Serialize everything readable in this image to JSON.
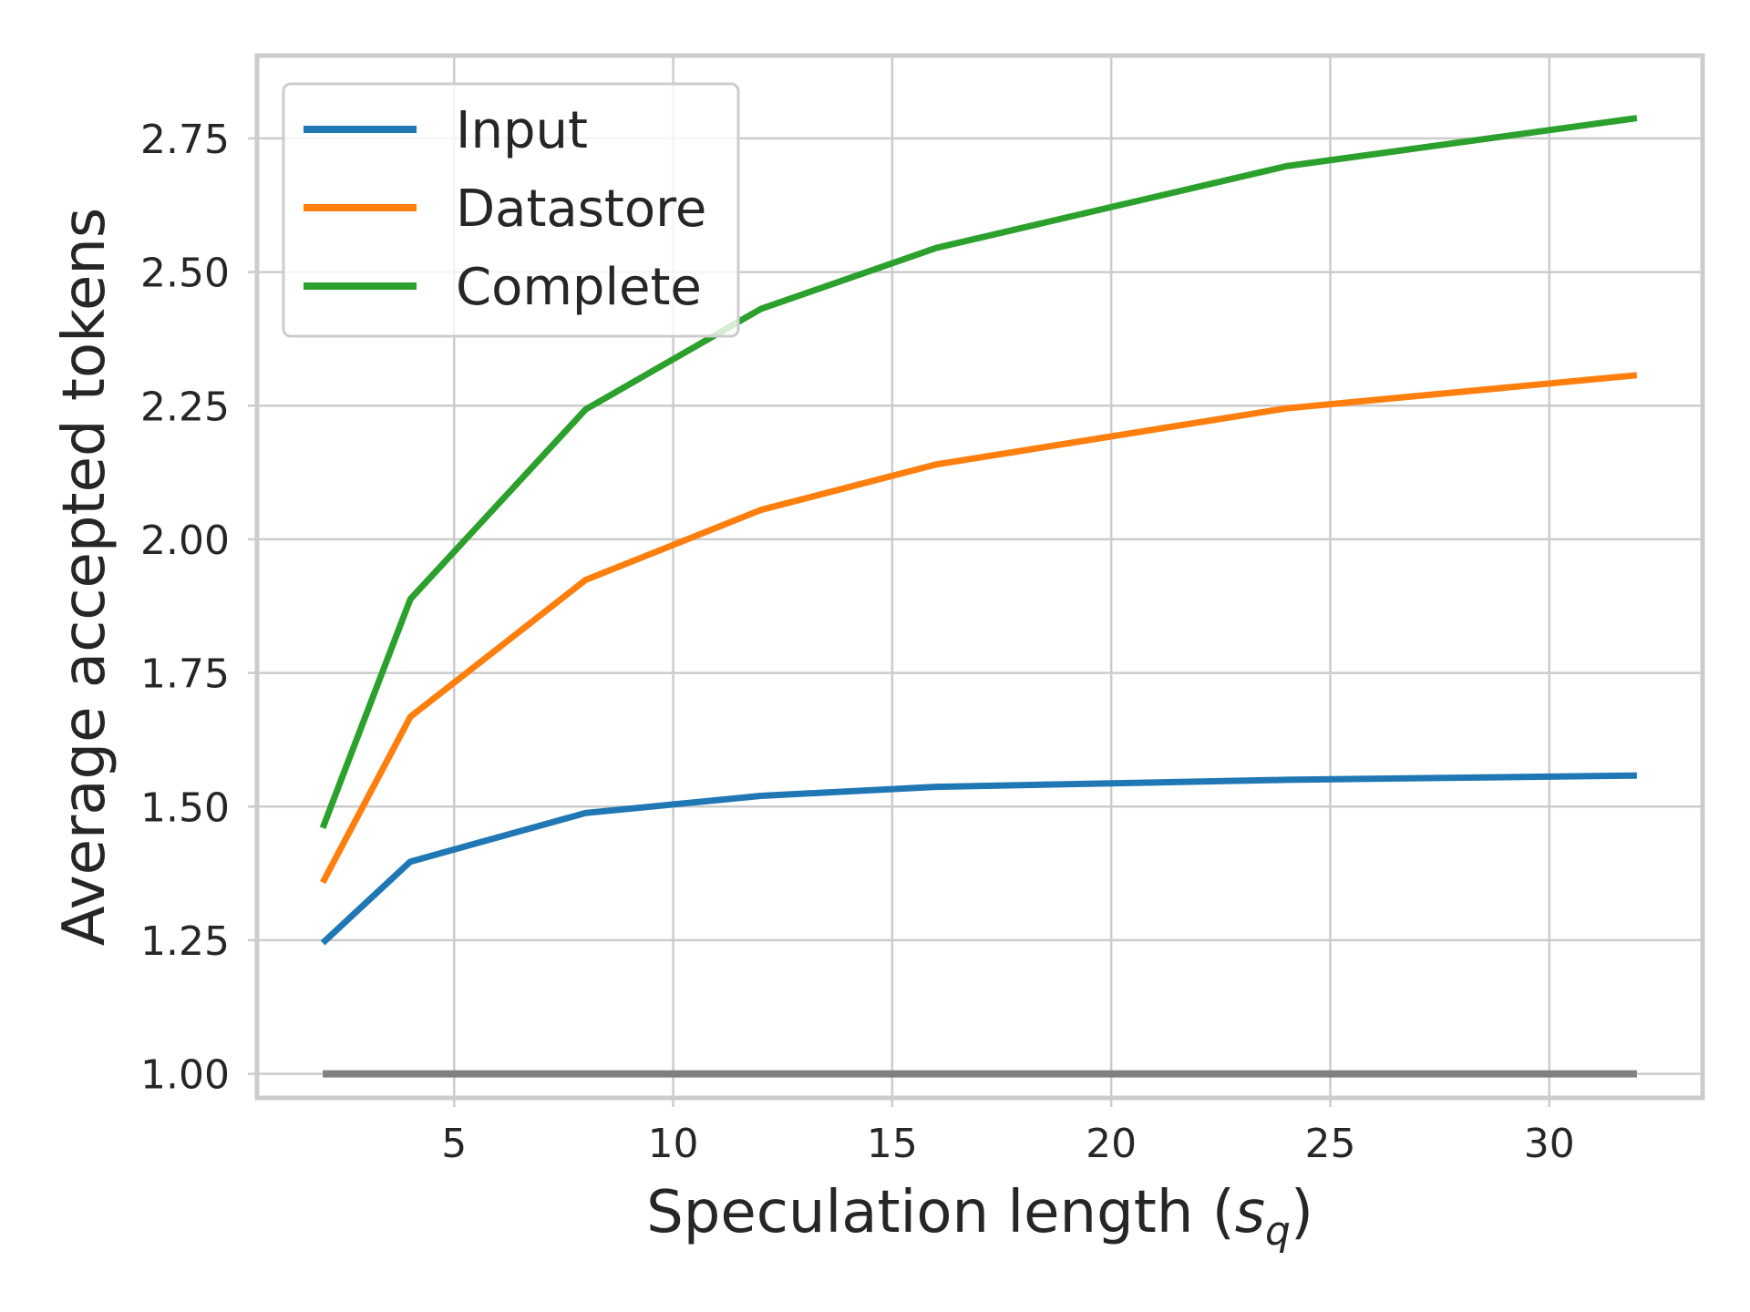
{
  "chart_data": {
    "type": "line",
    "xlabel": "Speculation length (",
    "xlabel_symbol": "s",
    "xlabel_subscript": "q",
    "xlabel_close": ")",
    "ylabel": "Average accepted tokens",
    "xlim": [
      0.5,
      33.5
    ],
    "ylim": [
      0.955,
      2.905
    ],
    "xticks": [
      5,
      10,
      15,
      20,
      25,
      30
    ],
    "xtick_labels": [
      "5",
      "10",
      "15",
      "20",
      "25",
      "30"
    ],
    "yticks": [
      1.0,
      1.25,
      1.5,
      1.75,
      2.0,
      2.25,
      2.5,
      2.75
    ],
    "ytick_labels": [
      "1.00",
      "1.25",
      "1.50",
      "1.75",
      "2.00",
      "2.25",
      "2.50",
      "2.75"
    ],
    "grid": true,
    "legend_position": "top-left",
    "x": [
      2,
      4,
      8,
      12,
      16,
      24,
      32
    ],
    "series": [
      {
        "name": "Input",
        "color": "#1f77b4",
        "values": [
          1.245,
          1.397,
          1.488,
          1.52,
          1.537,
          1.55,
          1.558
        ],
        "in_legend": true
      },
      {
        "name": "Datastore",
        "color": "#ff7f0e",
        "values": [
          1.358,
          1.668,
          1.924,
          2.055,
          2.14,
          2.245,
          2.307
        ],
        "in_legend": true
      },
      {
        "name": "Complete",
        "color": "#2ca02c",
        "values": [
          1.46,
          1.888,
          2.243,
          2.431,
          2.545,
          2.698,
          2.788
        ],
        "in_legend": true
      },
      {
        "name": "",
        "color": "#808080",
        "values": [
          1.0,
          1.0,
          1.0,
          1.0,
          1.0,
          1.0,
          1.0
        ],
        "in_legend": false
      }
    ],
    "colors": {
      "grid": "#cccccc",
      "frame": "#cccccc",
      "text": "#262626"
    }
  }
}
